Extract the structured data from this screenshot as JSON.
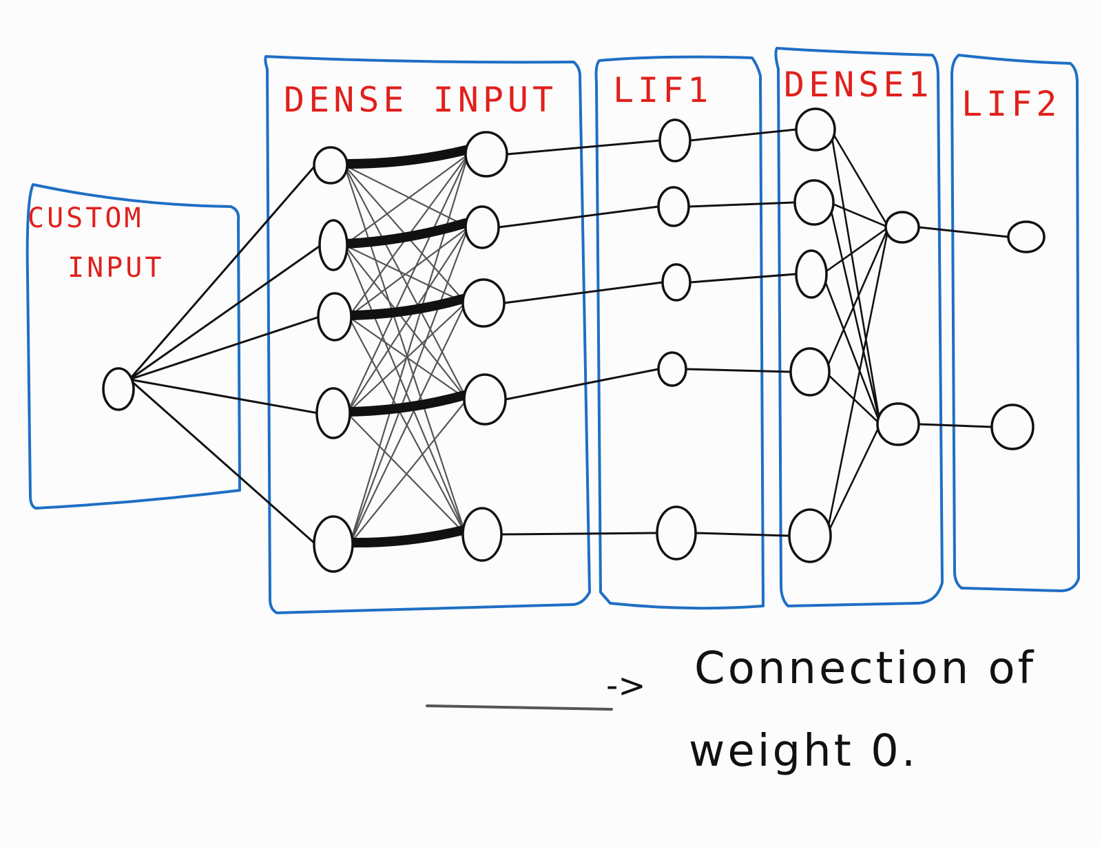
{
  "layers": [
    {
      "id": "custom-input",
      "label_lines": [
        "CUSTOM",
        "INPUT"
      ]
    },
    {
      "id": "dense-input",
      "label_lines": [
        "DENSE INPUT"
      ]
    },
    {
      "id": "lif1",
      "label_lines": [
        "LIF1"
      ]
    },
    {
      "id": "dense1",
      "label_lines": [
        "DENSE1"
      ]
    },
    {
      "id": "lif2",
      "label_lines": [
        "LIF2"
      ]
    }
  ],
  "legend": {
    "arrow": "->",
    "line1": "Connection of",
    "line2": "weight 0."
  },
  "colors": {
    "box": "#1f6fc4",
    "label": "#e0201c",
    "node": "#111111",
    "edge": "#111111",
    "zero_weight_edge": "#555555",
    "background": "#fcfcfc"
  }
}
